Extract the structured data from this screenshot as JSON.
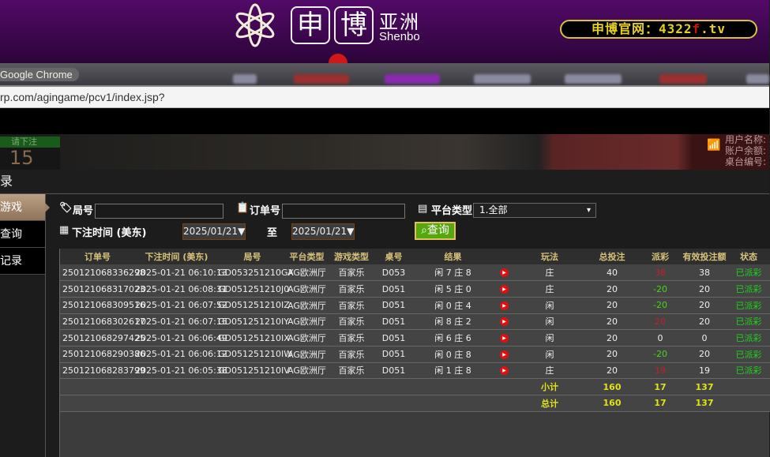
{
  "banner": {
    "logo_char1": "申",
    "logo_char2": "博",
    "logo_cn": "亚洲",
    "logo_en": "Shenbo",
    "site_prefix": "申博官网：4322",
    "site_f": "f",
    "site_suffix": ".tv"
  },
  "browser": {
    "title": "Google Chrome",
    "url": "rp.com/agingame/pcv1/index.jsp?"
  },
  "game": {
    "countdown_label": "请下注",
    "countdown_value": "15",
    "user_lines": [
      "用户名称:",
      "账户余额:",
      "桌台编号:"
    ]
  },
  "header": {
    "title": "录"
  },
  "sidebar": {
    "items": [
      {
        "label": "游戏",
        "active": true
      },
      {
        "label": "查询"
      },
      {
        "label": "记录"
      }
    ]
  },
  "filters": {
    "round_label": "局号",
    "round_value": "",
    "order_label": "订单号",
    "order_value": "",
    "platform_label": "平台类型",
    "platform_value": "1.全部",
    "time_label": "下注时间 (美东)",
    "date_from": "2025/01/21▼",
    "to_label": "至",
    "date_to": "2025/01/21▼",
    "query_label": "查询"
  },
  "table": {
    "headers": [
      "订单号",
      "下注时间 (美东)",
      "局号",
      "平台类型",
      "游戏类型",
      "桌号",
      "结果",
      "",
      "玩法",
      "总投注",
      "派彩",
      "有效投注额",
      "状态"
    ],
    "rows": [
      [
        "250121068336298",
        "2025-01-21 06:10:13",
        "GD053251210GX",
        "AG欧洲厅",
        "百家乐",
        "D053",
        "闲 7 庄 8",
        "",
        "庄",
        "40",
        "38",
        "38",
        "已派彩"
      ],
      [
        "250121068317023",
        "2025-01-21 06:08:31",
        "GD051251210J0",
        "AG欧洲厅",
        "百家乐",
        "D051",
        "闲 5 庄 0",
        "",
        "庄",
        "20",
        "-20",
        "20",
        "已派彩"
      ],
      [
        "250121068309516",
        "2025-01-21 06:07:52",
        "GD051251210IZ",
        "AG欧洲厅",
        "百家乐",
        "D051",
        "闲 0 庄 4",
        "",
        "闲",
        "20",
        "-20",
        "20",
        "已派彩"
      ],
      [
        "250121068302617",
        "2025-01-21 06:07:15",
        "GD051251210IY",
        "AG欧洲厅",
        "百家乐",
        "D051",
        "闲 8 庄 2",
        "",
        "闲",
        "20",
        "20",
        "20",
        "已派彩"
      ],
      [
        "250121068297425",
        "2025-01-21 06:06:49",
        "GD051251210IX",
        "AG欧洲厅",
        "百家乐",
        "D051",
        "闲 6 庄 6",
        "",
        "闲",
        "20",
        "0",
        "0",
        "已派彩"
      ],
      [
        "250121068290386",
        "2025-01-21 06:06:12",
        "GD051251210IW",
        "AG欧洲厅",
        "百家乐",
        "D051",
        "闲 0 庄 8",
        "",
        "闲",
        "20",
        "-20",
        "20",
        "已派彩"
      ],
      [
        "250121068283799",
        "2025-01-21 06:05:38",
        "GD051251210IV",
        "AG欧洲厅",
        "百家乐",
        "D051",
        "闲 1 庄 8",
        "",
        "庄",
        "20",
        "19",
        "19",
        "已派彩"
      ]
    ],
    "subtotal": {
      "label": "小计",
      "bet": "160",
      "payout": "17",
      "valid": "137"
    },
    "total": {
      "label": "总计",
      "bet": "160",
      "payout": "17",
      "valid": "137"
    }
  },
  "colors": {
    "banner": "#520a68",
    "positive_payout": "#c81c2c",
    "negative_payout": "#4fd21a",
    "status": "#1ed21a",
    "sum": "#e2e21a",
    "query_button": "#56a60e"
  }
}
